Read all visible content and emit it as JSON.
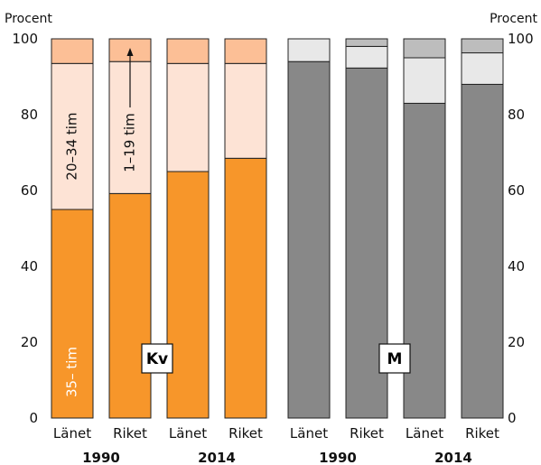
{
  "chart_data": {
    "type": "bar",
    "stacked": true,
    "y_unit_label": "Procent",
    "ylim": [
      0,
      100
    ],
    "yticks": [
      0,
      20,
      40,
      60,
      80,
      100
    ],
    "grid": false,
    "categories": [
      "Länet",
      "Riket",
      "Länet",
      "Riket",
      "Länet",
      "Riket",
      "Länet",
      "Riket"
    ],
    "years": [
      "1990",
      "2014",
      "1990",
      "2014"
    ],
    "groups": [
      {
        "label": "Kv",
        "stacks": [
          {
            "year": "1990",
            "place": "Länet",
            "values": [
              55,
              38.5,
              6.5
            ]
          },
          {
            "year": "1990",
            "place": "Riket",
            "values": [
              59.2,
              34.8,
              6
            ]
          },
          {
            "year": "2014",
            "place": "Länet",
            "values": [
              65,
              28.5,
              6.5
            ]
          },
          {
            "year": "2014",
            "place": "Riket",
            "values": [
              68.5,
              25,
              6.5
            ]
          }
        ]
      },
      {
        "label": "M",
        "stacks": [
          {
            "year": "1990",
            "place": "Länet",
            "values": [
              94,
              6,
              0
            ]
          },
          {
            "year": "1990",
            "place": "Riket",
            "values": [
              92.3,
              5.7,
              2
            ]
          },
          {
            "year": "2014",
            "place": "Länet",
            "values": [
              83,
              12,
              5
            ]
          },
          {
            "year": "2014",
            "place": "Riket",
            "values": [
              88,
              8.3,
              3.7
            ]
          }
        ]
      }
    ],
    "segment_order": [
      "35– tim",
      "20–34 tim",
      "1–19 tim"
    ],
    "segment_labels": {
      "full": "35– tim",
      "mid": "20–34 tim",
      "low": "1–19 tim"
    },
    "colors": {
      "Kv": [
        "#f7962a",
        "#fde3d5",
        "#fcbf96"
      ],
      "M": [
        "#888888",
        "#e8e8e8",
        "#bdbdbd"
      ]
    }
  }
}
